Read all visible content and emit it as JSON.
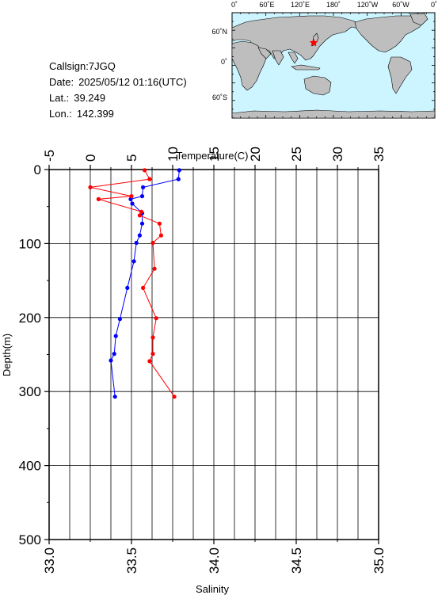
{
  "info": {
    "callsign_label": "Callsign:",
    "callsign": "7JGQ",
    "date_label": "Date:",
    "date": "2025/05/12 01:16(UTC)",
    "lat_label": "Lat.:",
    "lat": "39.249",
    "lon_label": "Lon.:",
    "lon": "142.399"
  },
  "map": {
    "top_labels": [
      "0˚",
      "60˚E",
      "120˚E",
      "180˚",
      "120˚W",
      "60˚W",
      "0˚"
    ],
    "left_labels": [
      "60˚N",
      "0˚",
      "60˚S"
    ],
    "station_marker": "red-star",
    "ocean_color": "#ccf5ff",
    "land_color": "#bebebe"
  },
  "chart_data": {
    "type": "line",
    "title": "",
    "xlabel_top": "Temperature(C)",
    "xlabel_bottom": "Salinity",
    "ylabel": "Depth(m)",
    "temperature_axis": {
      "min": -5,
      "max": 35,
      "ticks": [
        "-5",
        "0",
        "5",
        "10",
        "15",
        "20",
        "25",
        "30",
        "35"
      ]
    },
    "salinity_axis": {
      "min": 33.0,
      "max": 35.0,
      "ticks": [
        "33.0",
        "33.5",
        "34.0",
        "34.5",
        "35.0"
      ]
    },
    "depth_axis": {
      "min": 0,
      "max": 500,
      "inverted": true,
      "ticks": [
        "0",
        "100",
        "200",
        "300",
        "400",
        "500"
      ]
    },
    "grid": true,
    "series": [
      {
        "color": "#0000ff",
        "x_axis": "temperature",
        "points": [
          [
            10.8,
            1
          ],
          [
            10.7,
            13
          ],
          [
            6.4,
            24
          ],
          [
            6.3,
            36
          ],
          [
            4.9,
            40
          ],
          [
            5.1,
            46
          ],
          [
            6.3,
            59
          ],
          [
            6.3,
            73
          ],
          [
            6.0,
            89
          ],
          [
            5.6,
            99
          ],
          [
            5.3,
            124
          ],
          [
            4.5,
            160
          ],
          [
            3.6,
            202
          ],
          [
            3.1,
            225
          ],
          [
            2.9,
            249
          ],
          [
            2.5,
            258
          ],
          [
            3.0,
            307
          ]
        ]
      },
      {
        "color": "#ff0000",
        "x_axis": "salinity",
        "points": [
          [
            33.58,
            1
          ],
          [
            33.61,
            13
          ],
          [
            33.25,
            24
          ],
          [
            33.5,
            36
          ],
          [
            33.3,
            40
          ],
          [
            33.56,
            57
          ],
          [
            33.55,
            62
          ],
          [
            33.67,
            73
          ],
          [
            33.68,
            89
          ],
          [
            33.63,
            99
          ],
          [
            33.64,
            134
          ],
          [
            33.57,
            160
          ],
          [
            33.65,
            201
          ],
          [
            33.63,
            227
          ],
          [
            33.63,
            249
          ],
          [
            33.61,
            259
          ],
          [
            33.76,
            307
          ]
        ]
      }
    ]
  }
}
